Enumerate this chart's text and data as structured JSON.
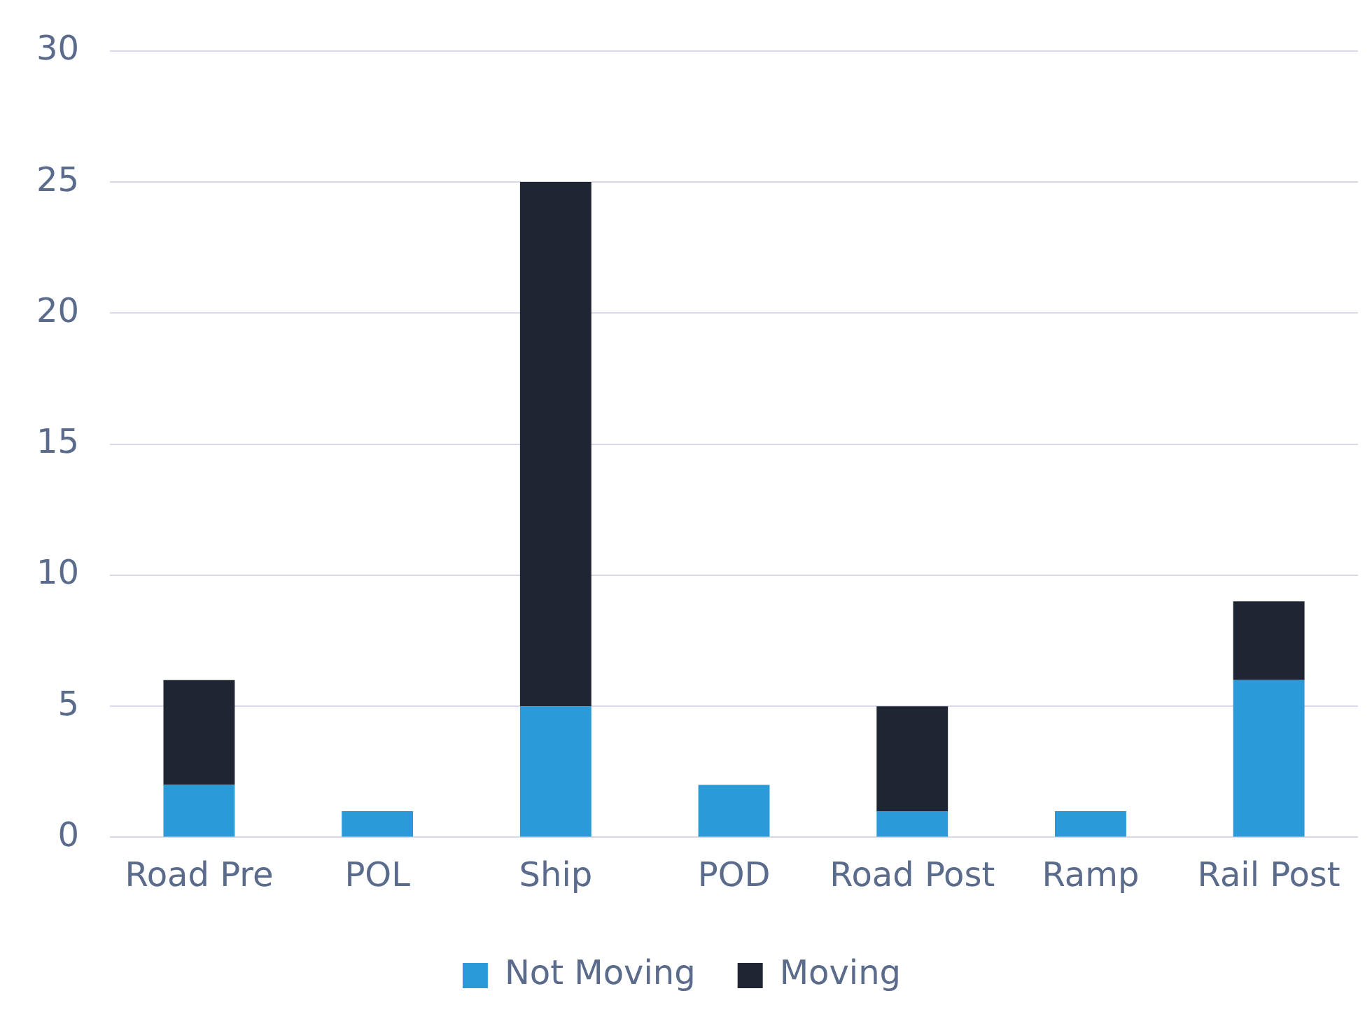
{
  "chart_data": {
    "type": "bar",
    "stacked": true,
    "categories": [
      "Road Pre",
      "POL",
      "Ship",
      "POD",
      "Road Post",
      "Ramp",
      "Rail Post"
    ],
    "series": [
      {
        "name": "Not Moving",
        "color": "#2b9ad8",
        "values": [
          2,
          1,
          5,
          2,
          1,
          1,
          6
        ]
      },
      {
        "name": "Moving",
        "color": "#1f2533",
        "values": [
          4,
          0,
          20,
          0,
          4,
          0,
          3
        ]
      }
    ],
    "ylim": [
      0,
      30
    ],
    "yticks": [
      0,
      5,
      10,
      15,
      20,
      25,
      30
    ],
    "grid": "y",
    "legend": "bottom"
  }
}
